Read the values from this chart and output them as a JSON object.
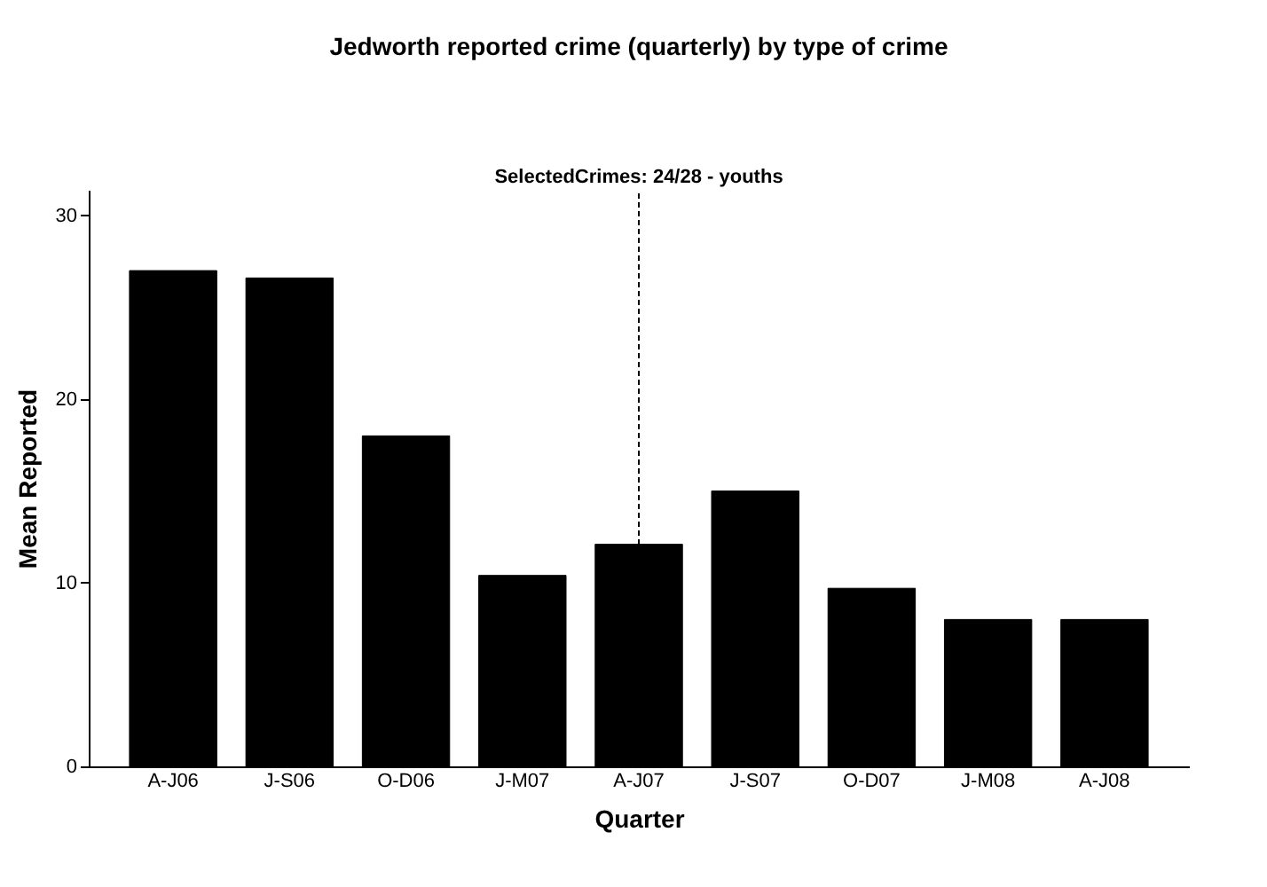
{
  "chart_data": {
    "type": "bar",
    "title": "Jedworth reported crime (quarterly) by type of crime",
    "xlabel": "Quarter",
    "ylabel": "Mean Reported",
    "categories": [
      "A-J06",
      "J-S06",
      "O-D06",
      "J-M07",
      "A-J07",
      "J-S07",
      "O-D07",
      "J-M08",
      "A-J08"
    ],
    "values": [
      27.0,
      26.6,
      18.0,
      10.4,
      12.1,
      15.0,
      9.7,
      8.0,
      8.0
    ],
    "color": "#000000",
    "ylim": [
      0,
      31.4
    ],
    "yticks": [
      0,
      10,
      20,
      30
    ],
    "grid": false,
    "ref_lines": [
      {
        "axis": "x",
        "value": "A-J07",
        "label": "SelectedCrimes: 24/28 - youths",
        "line_style": "dashed",
        "color": "#000000"
      }
    ]
  }
}
